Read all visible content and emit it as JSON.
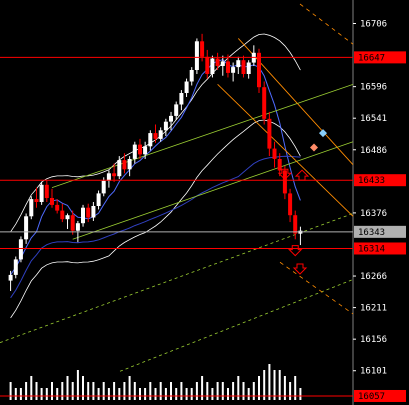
{
  "chart_data": {
    "type": "candlestick",
    "y_axis": {
      "ticks": [
        16706,
        16596,
        16541,
        16486,
        16376,
        16266,
        16211,
        16156,
        16101
      ],
      "range": [
        16050,
        16740
      ]
    },
    "horizontal_levels": [
      {
        "value": 16647,
        "label": "16647",
        "color": "#ff0000",
        "boxed": true
      },
      {
        "value": 16433,
        "label": "16433",
        "color": "#ff0000",
        "boxed": true
      },
      {
        "value": 16343,
        "label": "16343",
        "color": "#b0b0b0",
        "boxed": true
      },
      {
        "value": 16314,
        "label": "16314",
        "color": "#ff0000",
        "boxed": true
      },
      {
        "value": 16057,
        "label": "16057",
        "color": "#ff0000",
        "boxed": true
      }
    ],
    "colors": {
      "background": "#000000",
      "bull_candle": "#ffffff",
      "bear_candle": "#ff0000",
      "axis_text": "#ffffff",
      "channel": "#9acd32",
      "envelope": "#ffffff",
      "fast_ma": "#4f6bff",
      "slow_ma": "#3040c0",
      "downtrend": "#ff8c00",
      "volume": "#ffffff"
    },
    "candles": [
      [
        16258,
        16275,
        16240,
        16268
      ],
      [
        16268,
        16300,
        16262,
        16295
      ],
      [
        16295,
        16335,
        16290,
        16330
      ],
      [
        16330,
        16375,
        16322,
        16370
      ],
      [
        16370,
        16405,
        16365,
        16400
      ],
      [
        16400,
        16420,
        16385,
        16395
      ],
      [
        16395,
        16430,
        16390,
        16425
      ],
      [
        16425,
        16432,
        16395,
        16402
      ],
      [
        16402,
        16418,
        16385,
        16390
      ],
      [
        16390,
        16400,
        16375,
        16380
      ],
      [
        16380,
        16392,
        16360,
        16365
      ],
      [
        16365,
        16375,
        16348,
        16372
      ],
      [
        16372,
        16380,
        16338,
        16345
      ],
      [
        16345,
        16362,
        16325,
        16358
      ],
      [
        16358,
        16390,
        16352,
        16385
      ],
      [
        16385,
        16392,
        16360,
        16368
      ],
      [
        16368,
        16395,
        16362,
        16388
      ],
      [
        16388,
        16415,
        16382,
        16410
      ],
      [
        16410,
        16438,
        16405,
        16432
      ],
      [
        16432,
        16450,
        16420,
        16445
      ],
      [
        16445,
        16462,
        16430,
        16440
      ],
      [
        16440,
        16475,
        16435,
        16468
      ],
      [
        16468,
        16480,
        16445,
        16452
      ],
      [
        16452,
        16475,
        16440,
        16470
      ],
      [
        16470,
        16500,
        16462,
        16495
      ],
      [
        16495,
        16505,
        16470,
        16478
      ],
      [
        16478,
        16500,
        16470,
        16492
      ],
      [
        16492,
        16520,
        16485,
        16515
      ],
      [
        16515,
        16530,
        16498,
        16505
      ],
      [
        16505,
        16525,
        16500,
        16520
      ],
      [
        16520,
        16540,
        16510,
        16535
      ],
      [
        16535,
        16552,
        16520,
        16545
      ],
      [
        16545,
        16570,
        16538,
        16565
      ],
      [
        16565,
        16590,
        16555,
        16585
      ],
      [
        16585,
        16610,
        16578,
        16605
      ],
      [
        16605,
        16630,
        16598,
        16625
      ],
      [
        16625,
        16680,
        16618,
        16675
      ],
      [
        16675,
        16688,
        16640,
        16648
      ],
      [
        16648,
        16660,
        16610,
        16618
      ],
      [
        16618,
        16650,
        16612,
        16645
      ],
      [
        16645,
        16655,
        16625,
        16632
      ],
      [
        16632,
        16650,
        16615,
        16640
      ],
      [
        16640,
        16652,
        16612,
        16620
      ],
      [
        16620,
        16638,
        16605,
        16630
      ],
      [
        16630,
        16648,
        16618,
        16642
      ],
      [
        16642,
        16650,
        16612,
        16618
      ],
      [
        16618,
        16642,
        16610,
        16638
      ],
      [
        16638,
        16668,
        16632,
        16655
      ],
      [
        16655,
        16662,
        16585,
        16595
      ],
      [
        16595,
        16605,
        16530,
        16540
      ],
      [
        16540,
        16552,
        16475,
        16488
      ],
      [
        16488,
        16500,
        16455,
        16470
      ],
      [
        16470,
        16480,
        16440,
        16450
      ],
      [
        16450,
        16458,
        16400,
        16410
      ],
      [
        16410,
        16418,
        16360,
        16372
      ],
      [
        16372,
        16380,
        16330,
        16340
      ],
      [
        16340,
        16352,
        16320,
        16345
      ]
    ],
    "volume": [
      3,
      2,
      2,
      3,
      4,
      3,
      2,
      2,
      3,
      2,
      3,
      4,
      3,
      5,
      4,
      3,
      3,
      2,
      3,
      2,
      3,
      2,
      3,
      4,
      3,
      2,
      2,
      3,
      2,
      3,
      2,
      3,
      2,
      3,
      2,
      2,
      3,
      4,
      3,
      2,
      3,
      3,
      2,
      3,
      4,
      3,
      2,
      3,
      4,
      5,
      6,
      5,
      5,
      4,
      3,
      4,
      2
    ]
  }
}
